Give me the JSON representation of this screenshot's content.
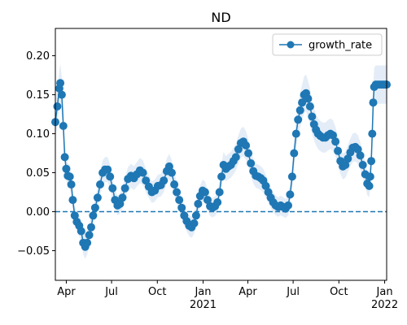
{
  "chart_data": {
    "type": "line",
    "title": "ND",
    "xlabel": "",
    "ylabel": "",
    "x_range": [
      "2020-03-10",
      "2022-01-05"
    ],
    "ylim": [
      -0.088,
      0.235
    ],
    "x_ticks": [
      {
        "date": "2020-04-01",
        "label": "Apr"
      },
      {
        "date": "2020-07-01",
        "label": "Jul"
      },
      {
        "date": "2020-10-01",
        "label": "Oct"
      },
      {
        "date": "2021-01-01",
        "label": "Jan",
        "sublabel": "2021"
      },
      {
        "date": "2021-04-01",
        "label": "Apr"
      },
      {
        "date": "2021-07-01",
        "label": "Jul"
      },
      {
        "date": "2021-10-01",
        "label": "Oct"
      },
      {
        "date": "2022-01-01",
        "label": "Jan",
        "sublabel": "2022"
      }
    ],
    "y_ticks": [
      {
        "value": -0.05,
        "label": "−0.05"
      },
      {
        "value": 0.0,
        "label": "0.00"
      },
      {
        "value": 0.05,
        "label": "0.05"
      },
      {
        "value": 0.1,
        "label": "0.10"
      },
      {
        "value": 0.15,
        "label": "0.15"
      },
      {
        "value": 0.2,
        "label": "0.20"
      }
    ],
    "reference_line": {
      "value": 0.0,
      "style": "dashed"
    },
    "legend": {
      "position": "top-right"
    },
    "colors": {
      "line": "#1f77b4",
      "band": "#dbe7f4",
      "reference": "#1f77b4"
    },
    "series": [
      {
        "name": "growth_rate",
        "marker": "circle",
        "points": [
          [
            "2020-03-10",
            0.115
          ],
          [
            "2020-03-14",
            0.135
          ],
          [
            "2020-03-18",
            0.158
          ],
          [
            "2020-03-20",
            0.165
          ],
          [
            "2020-03-23",
            0.15
          ],
          [
            "2020-03-26",
            0.11
          ],
          [
            "2020-03-29",
            0.07
          ],
          [
            "2020-04-01",
            0.055
          ],
          [
            "2020-04-04",
            0.046
          ],
          [
            "2020-04-08",
            0.045
          ],
          [
            "2020-04-11",
            0.035
          ],
          [
            "2020-04-14",
            0.015
          ],
          [
            "2020-04-18",
            -0.005
          ],
          [
            "2020-04-22",
            -0.013
          ],
          [
            "2020-04-27",
            -0.018
          ],
          [
            "2020-05-01",
            -0.025
          ],
          [
            "2020-05-05",
            -0.04
          ],
          [
            "2020-05-09",
            -0.045
          ],
          [
            "2020-05-13",
            -0.04
          ],
          [
            "2020-05-17",
            -0.03
          ],
          [
            "2020-05-21",
            -0.02
          ],
          [
            "2020-05-25",
            -0.005
          ],
          [
            "2020-05-29",
            0.005
          ],
          [
            "2020-06-03",
            0.018
          ],
          [
            "2020-06-08",
            0.035
          ],
          [
            "2020-06-13",
            0.05
          ],
          [
            "2020-06-18",
            0.054
          ],
          [
            "2020-06-23",
            0.054
          ],
          [
            "2020-06-28",
            0.045
          ],
          [
            "2020-07-03",
            0.03
          ],
          [
            "2020-07-08",
            0.015
          ],
          [
            "2020-07-13",
            0.008
          ],
          [
            "2020-07-18",
            0.01
          ],
          [
            "2020-07-23",
            0.018
          ],
          [
            "2020-07-28",
            0.03
          ],
          [
            "2020-08-03",
            0.042
          ],
          [
            "2020-08-09",
            0.046
          ],
          [
            "2020-08-15",
            0.043
          ],
          [
            "2020-08-21",
            0.048
          ],
          [
            "2020-08-27",
            0.053
          ],
          [
            "2020-09-02",
            0.05
          ],
          [
            "2020-09-08",
            0.04
          ],
          [
            "2020-09-14",
            0.032
          ],
          [
            "2020-09-20",
            0.025
          ],
          [
            "2020-09-26",
            0.027
          ],
          [
            "2020-10-02",
            0.033
          ],
          [
            "2020-10-08",
            0.034
          ],
          [
            "2020-10-14",
            0.04
          ],
          [
            "2020-10-20",
            0.052
          ],
          [
            "2020-10-25",
            0.058
          ],
          [
            "2020-10-30",
            0.05
          ],
          [
            "2020-11-04",
            0.035
          ],
          [
            "2020-11-09",
            0.025
          ],
          [
            "2020-11-14",
            0.015
          ],
          [
            "2020-11-19",
            0.005
          ],
          [
            "2020-11-24",
            -0.005
          ],
          [
            "2020-11-29",
            -0.012
          ],
          [
            "2020-12-04",
            -0.018
          ],
          [
            "2020-12-09",
            -0.02
          ],
          [
            "2020-12-14",
            -0.015
          ],
          [
            "2020-12-18",
            -0.005
          ],
          [
            "2020-12-22",
            0.01
          ],
          [
            "2020-12-26",
            0.02
          ],
          [
            "2020-12-31",
            0.027
          ],
          [
            "2021-01-05",
            0.025
          ],
          [
            "2021-01-10",
            0.015
          ],
          [
            "2021-01-15",
            0.007
          ],
          [
            "2021-01-20",
            0.005
          ],
          [
            "2021-01-25",
            0.007
          ],
          [
            "2021-01-30",
            0.012
          ],
          [
            "2021-02-03",
            0.025
          ],
          [
            "2021-02-07",
            0.045
          ],
          [
            "2021-02-11",
            0.06
          ],
          [
            "2021-02-16",
            0.055
          ],
          [
            "2021-02-21",
            0.058
          ],
          [
            "2021-02-26",
            0.06
          ],
          [
            "2021-03-03",
            0.065
          ],
          [
            "2021-03-08",
            0.07
          ],
          [
            "2021-03-13",
            0.08
          ],
          [
            "2021-03-18",
            0.088
          ],
          [
            "2021-03-23",
            0.09
          ],
          [
            "2021-03-28",
            0.085
          ],
          [
            "2021-04-02",
            0.075
          ],
          [
            "2021-04-07",
            0.062
          ],
          [
            "2021-04-12",
            0.052
          ],
          [
            "2021-04-17",
            0.046
          ],
          [
            "2021-04-22",
            0.045
          ],
          [
            "2021-04-27",
            0.043
          ],
          [
            "2021-05-02",
            0.04
          ],
          [
            "2021-05-07",
            0.033
          ],
          [
            "2021-05-12",
            0.025
          ],
          [
            "2021-05-17",
            0.018
          ],
          [
            "2021-05-22",
            0.012
          ],
          [
            "2021-05-27",
            0.008
          ],
          [
            "2021-06-01",
            0.006
          ],
          [
            "2021-06-06",
            0.008
          ],
          [
            "2021-06-11",
            0.006
          ],
          [
            "2021-06-16",
            0.004
          ],
          [
            "2021-06-21",
            0.008
          ],
          [
            "2021-06-25",
            0.022
          ],
          [
            "2021-06-29",
            0.045
          ],
          [
            "2021-07-03",
            0.075
          ],
          [
            "2021-07-07",
            0.1
          ],
          [
            "2021-07-11",
            0.118
          ],
          [
            "2021-07-15",
            0.13
          ],
          [
            "2021-07-19",
            0.14
          ],
          [
            "2021-07-23",
            0.15
          ],
          [
            "2021-07-27",
            0.152
          ],
          [
            "2021-07-31",
            0.145
          ],
          [
            "2021-08-04",
            0.135
          ],
          [
            "2021-08-08",
            0.122
          ],
          [
            "2021-08-12",
            0.112
          ],
          [
            "2021-08-16",
            0.105
          ],
          [
            "2021-08-20",
            0.1
          ],
          [
            "2021-08-25",
            0.097
          ],
          [
            "2021-08-30",
            0.095
          ],
          [
            "2021-09-04",
            0.095
          ],
          [
            "2021-09-09",
            0.098
          ],
          [
            "2021-09-14",
            0.1
          ],
          [
            "2021-09-19",
            0.098
          ],
          [
            "2021-09-24",
            0.09
          ],
          [
            "2021-09-29",
            0.078
          ],
          [
            "2021-10-04",
            0.065
          ],
          [
            "2021-10-09",
            0.058
          ],
          [
            "2021-10-14",
            0.06
          ],
          [
            "2021-10-19",
            0.068
          ],
          [
            "2021-10-24",
            0.076
          ],
          [
            "2021-10-29",
            0.082
          ],
          [
            "2021-11-03",
            0.083
          ],
          [
            "2021-11-08",
            0.08
          ],
          [
            "2021-11-13",
            0.072
          ],
          [
            "2021-11-18",
            0.06
          ],
          [
            "2021-11-23",
            0.048
          ],
          [
            "2021-11-27",
            0.036
          ],
          [
            "2021-12-01",
            0.033
          ],
          [
            "2021-12-03",
            0.045
          ],
          [
            "2021-12-05",
            0.065
          ],
          [
            "2021-12-07",
            0.1
          ],
          [
            "2021-12-09",
            0.14
          ],
          [
            "2021-12-11",
            0.16
          ],
          [
            "2021-12-14",
            0.163
          ],
          [
            "2021-12-18",
            0.163
          ],
          [
            "2021-12-22",
            0.163
          ],
          [
            "2021-12-26",
            0.163
          ],
          [
            "2021-12-30",
            0.163
          ],
          [
            "2022-01-03",
            0.163
          ],
          [
            "2022-01-05",
            0.163
          ]
        ]
      }
    ]
  }
}
